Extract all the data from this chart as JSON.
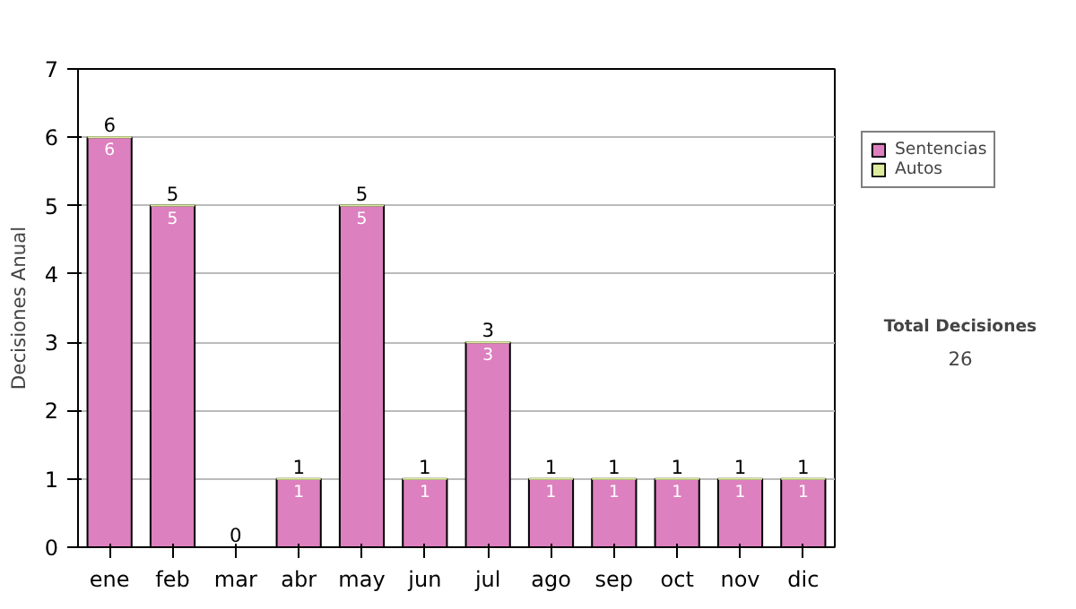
{
  "chart_data": {
    "type": "bar",
    "stacked": true,
    "ylabel": "Decisiones Anual",
    "categories": [
      "ene",
      "feb",
      "mar",
      "abr",
      "may",
      "jun",
      "jul",
      "ago",
      "sep",
      "oct",
      "nov",
      "dic"
    ],
    "series": [
      {
        "name": "Sentencias",
        "color": "#dd80bf",
        "values": [
          6,
          5,
          0,
          1,
          5,
          1,
          3,
          1,
          1,
          1,
          1,
          1
        ],
        "value_labels": [
          "6",
          "5",
          null,
          "1",
          "5",
          "1",
          "3",
          "1",
          "1",
          "1",
          "1",
          "1"
        ]
      },
      {
        "name": "Autos",
        "color": "#dcec9c",
        "values": [
          0,
          0,
          0,
          0,
          0,
          0,
          0,
          0,
          0,
          0,
          0,
          0
        ]
      }
    ],
    "totals": [
      "6",
      "5",
      "0",
      "1",
      "5",
      "1",
      "3",
      "1",
      "1",
      "1",
      "1",
      "1"
    ],
    "ylim": [
      0,
      7
    ],
    "yticks": [
      0,
      1,
      2,
      3,
      4,
      5,
      6,
      7
    ],
    "grid": "y",
    "legend": "right",
    "annotations": [
      "Total Decisiones",
      "26"
    ]
  }
}
